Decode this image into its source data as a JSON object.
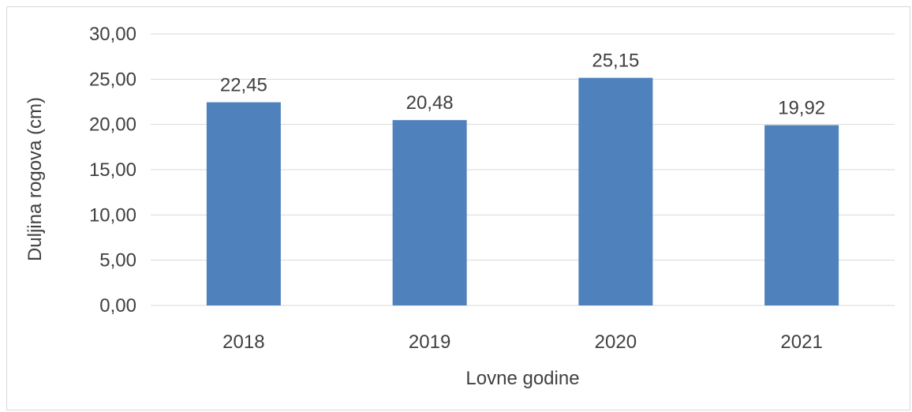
{
  "chart_data": {
    "type": "bar",
    "categories": [
      "2018",
      "2019",
      "2020",
      "2021"
    ],
    "values": [
      22.45,
      20.48,
      25.15,
      19.92
    ],
    "data_labels": [
      "22,45",
      "20,48",
      "25,15",
      "19,92"
    ],
    "xlabel": "Lovne godine",
    "ylabel": "Duljina rogova (cm)",
    "ylim": [
      0,
      30
    ],
    "yticks": [
      0,
      5,
      10,
      15,
      20,
      25,
      30
    ],
    "ytick_labels": [
      "0,00",
      "5,00",
      "10,00",
      "15,00",
      "20,00",
      "25,00",
      "30,00"
    ],
    "grid": true,
    "legend": "none",
    "bar_color": "#4f81bd",
    "grid_color": "#d9d9d9",
    "text_color": "#404040"
  }
}
